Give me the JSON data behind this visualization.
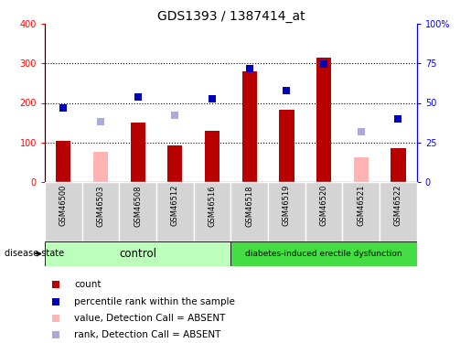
{
  "title": "GDS1393 / 1387414_at",
  "samples": [
    "GSM46500",
    "GSM46503",
    "GSM46508",
    "GSM46512",
    "GSM46516",
    "GSM46518",
    "GSM46519",
    "GSM46520",
    "GSM46521",
    "GSM46522"
  ],
  "count_values": [
    103,
    null,
    150,
    93,
    130,
    280,
    183,
    315,
    null,
    85
  ],
  "count_absent_values": [
    null,
    75,
    null,
    null,
    null,
    null,
    null,
    null,
    63,
    null
  ],
  "percentile_values": [
    188,
    null,
    215,
    null,
    210,
    287,
    232,
    298,
    null,
    160
  ],
  "percentile_absent_values": [
    null,
    153,
    null,
    168,
    null,
    null,
    null,
    null,
    128,
    null
  ],
  "ylim_left": [
    0,
    400
  ],
  "ylim_right": [
    0,
    100
  ],
  "yticks_left": [
    0,
    100,
    200,
    300,
    400
  ],
  "yticks_right": [
    0,
    25,
    50,
    75,
    100
  ],
  "ytick_labels_right": [
    "0",
    "25",
    "50",
    "75",
    "100%"
  ],
  "control_label": "control",
  "disease_label": "diabetes-induced erectile dysfunction",
  "group_label": "disease state",
  "bar_color_present": "#b80000",
  "bar_color_absent": "#ffb3b3",
  "dot_color_present": "#0000bb",
  "dot_color_absent": "#aaaadd",
  "control_bg": "#bbffbb",
  "disease_bg": "#44dd44",
  "sample_box_bg": "#d4d4d4",
  "legend_items": [
    {
      "label": "count",
      "color": "#b80000"
    },
    {
      "label": "percentile rank within the sample",
      "color": "#0000bb"
    },
    {
      "label": "value, Detection Call = ABSENT",
      "color": "#ffb3b3"
    },
    {
      "label": "rank, Detection Call = ABSENT",
      "color": "#aaaadd"
    }
  ],
  "dotted_grid": [
    100,
    200,
    300
  ],
  "bar_width": 0.4,
  "n_control": 5,
  "n_disease": 5
}
